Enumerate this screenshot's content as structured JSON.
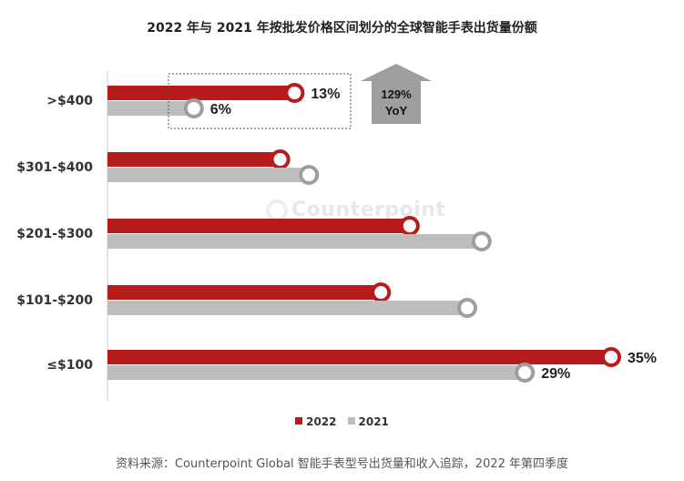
{
  "title": "2022 年与 2021 年按批发价格区间划分的全球智能手表出货量份额",
  "watermark": "Counterpoint",
  "source_note": "资料来源：Counterpoint Global 智能手表型号出货量和收入追踪，2022 年第四季度",
  "callout": {
    "line1": "129%",
    "line2": "YoY"
  },
  "colors": {
    "s2022": "#b71c1c",
    "s2021": "#bdbdbd",
    "marker_2021": "#9e9e9e"
  },
  "chart_data": {
    "type": "bar",
    "orientation": "horizontal",
    "categories": [
      ">$400",
      "$301-$400",
      "$201-$300",
      "$101-$200",
      "≤$100"
    ],
    "series": [
      {
        "name": "2022",
        "values": [
          13,
          12,
          21,
          19,
          35
        ],
        "labels": [
          "13%",
          "",
          "",
          "",
          "35%"
        ]
      },
      {
        "name": "2021",
        "values": [
          6,
          14,
          26,
          25,
          29
        ],
        "labels": [
          "6%",
          "",
          "",
          "",
          "29%"
        ]
      }
    ],
    "xlim": [
      0,
      35
    ],
    "legend_position": "bottom"
  }
}
